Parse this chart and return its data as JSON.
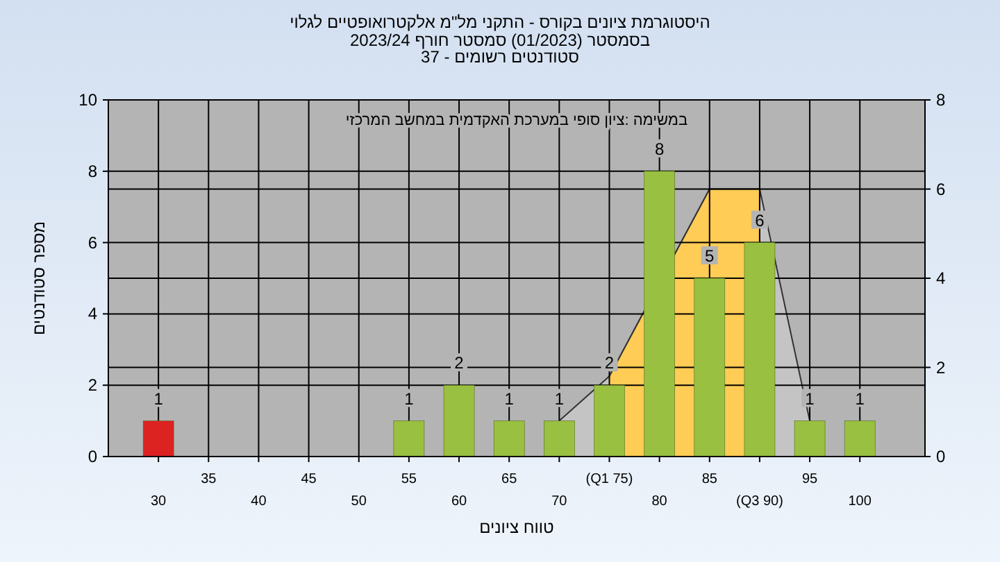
{
  "chart_data": {
    "type": "bar",
    "title": "היסטוגרמת ציונים בקורס - התקני מל\"מ אלקטרואופטיים לגלוי",
    "subtitle": "בסמסטר  (01/2023)  סמסטר חורף  2023/24\nסטודנטים רשומים - 37",
    "xlabel": "טווח ציונים",
    "ylabel": "מספר סטודנטים",
    "annotations": [
      "במשימה :ציון סופי במערכת האקדמית במחשב המרכזי"
    ],
    "categories": [
      "30",
      "35",
      "40",
      "45",
      "50",
      "55",
      "60",
      "65",
      "70",
      "(Q1 75)",
      "80",
      "85",
      "(Q3 90)",
      "95",
      "100"
    ],
    "ylim": [
      0,
      10
    ],
    "yticks": [
      0,
      2,
      4,
      6,
      8,
      10
    ],
    "y2lim": [
      0,
      8
    ],
    "y2ticks": [
      0,
      2,
      4,
      6,
      8
    ],
    "grid": true,
    "series": [
      {
        "type": "area",
        "axis": "y2",
        "color": "#c4c4c4",
        "values": [
          null,
          null,
          null,
          null,
          null,
          null,
          null,
          null,
          0.8,
          1.8,
          null,
          6.0,
          6.0,
          0.8,
          null
        ]
      },
      {
        "type": "area",
        "axis": "y2",
        "color": "#ffcc55",
        "values": [
          null,
          null,
          null,
          null,
          null,
          null,
          null,
          null,
          null,
          1.8,
          null,
          6.0,
          6.0,
          null,
          null
        ]
      },
      {
        "colors": [
          "#dd2222",
          "#99c040",
          "#99c040",
          "#99c040",
          "#99c040",
          "#99c040",
          "#99c040",
          "#99c040",
          "#99c040",
          "#99c040",
          "#99c040",
          "#99c040",
          "#99c040",
          "#99c040",
          "#99c040"
        ],
        "values": [
          1,
          0,
          0,
          0,
          0,
          1,
          2,
          1,
          1,
          2,
          8,
          5,
          6,
          1,
          1
        ],
        "value_labels": [
          "1",
          null,
          null,
          null,
          null,
          "1",
          "2",
          "1",
          "1",
          "2",
          "8",
          "5",
          "6",
          "1",
          "1"
        ]
      }
    ]
  }
}
